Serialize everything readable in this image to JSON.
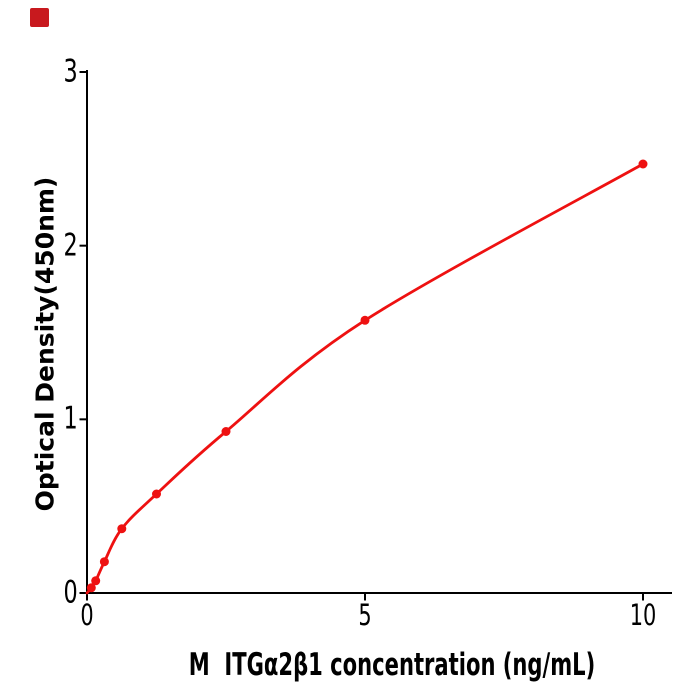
{
  "figure": {
    "background": "#ffffff",
    "corner_square_color": "#c8191e"
  },
  "chart_data": {
    "type": "scatter",
    "title": "",
    "xlabel": "M  ITGα2β1 concentration (ng/mL)",
    "ylabel": "Optical Density(450nm)",
    "x": [
      0.078,
      0.156,
      0.313,
      0.625,
      1.25,
      2.5,
      5,
      10
    ],
    "y": [
      0.03,
      0.07,
      0.18,
      0.37,
      0.57,
      0.93,
      1.57,
      2.47
    ],
    "xlim": [
      0,
      10.5
    ],
    "ylim": [
      0,
      3
    ],
    "x_ticks": [
      0,
      5,
      10
    ],
    "y_ticks": [
      0,
      1,
      2,
      3
    ],
    "grid": false,
    "legend_position": "none",
    "fit_line": true,
    "fit_through_origin": true,
    "line_color": "#ee1111",
    "marker_color": "#ee1111",
    "axis_color": "#000000"
  }
}
